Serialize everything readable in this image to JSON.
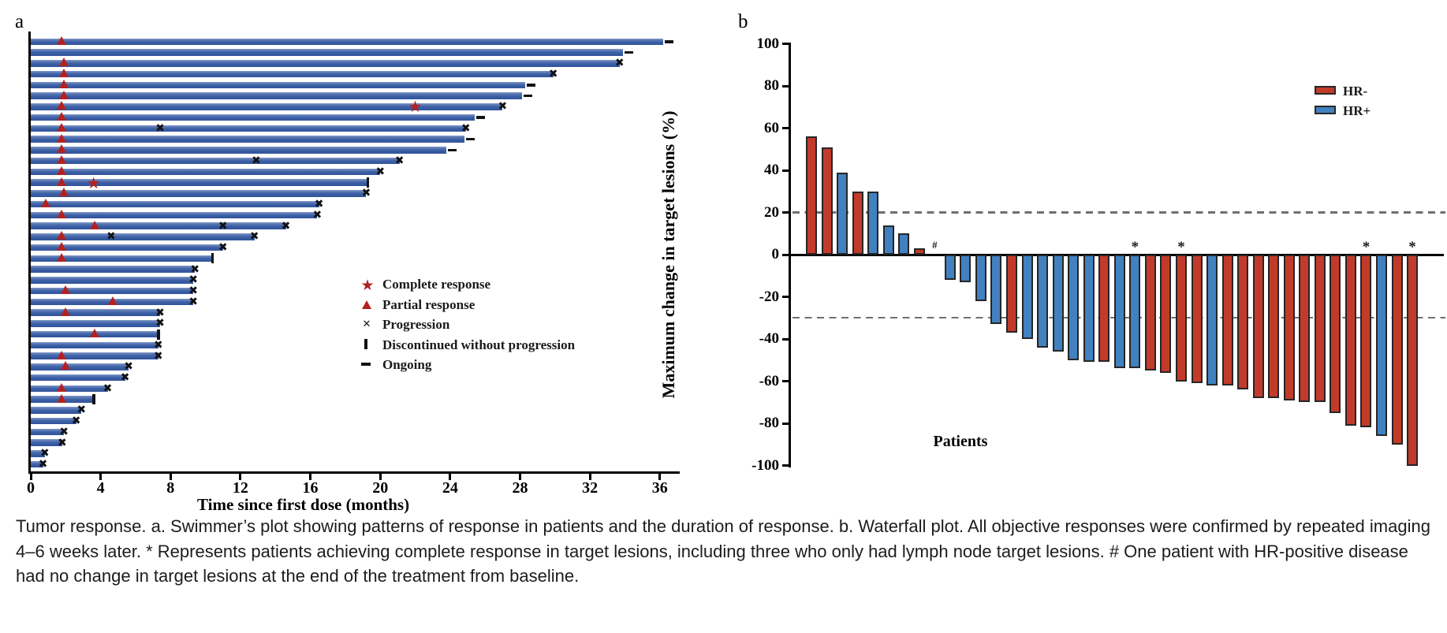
{
  "figure": {
    "panel_a_label": "a",
    "panel_b_label": "b"
  },
  "chart_data": [
    {
      "type": "swimmer",
      "xlabel": "Time since first dose (months)",
      "x_ticks": [
        0,
        4,
        8,
        12,
        16,
        20,
        24,
        28,
        32,
        36
      ],
      "xlim": [
        0,
        37
      ],
      "bar_color": "#3a5fa5",
      "marker_red": "#b42121",
      "marker_black": "#121212",
      "legend": [
        {
          "symbol": "star",
          "label": "Complete response"
        },
        {
          "symbol": "triangle",
          "label": "Partial response"
        },
        {
          "symbol": "x",
          "label": "Progression"
        },
        {
          "symbol": "bar",
          "label": "Discontinued without progression"
        },
        {
          "symbol": "dash",
          "label": "Ongoing"
        }
      ],
      "patients": [
        {
          "duration": 36.2,
          "end": "ongoing",
          "events": [
            [
              "pr",
              1.8
            ]
          ]
        },
        {
          "duration": 33.9,
          "end": "ongoing",
          "events": []
        },
        {
          "duration": 33.7,
          "end": "progression",
          "events": [
            [
              "pr",
              1.9
            ]
          ]
        },
        {
          "duration": 29.9,
          "end": "progression",
          "events": [
            [
              "pr",
              1.9
            ]
          ]
        },
        {
          "duration": 28.3,
          "end": "ongoing",
          "events": [
            [
              "pr",
              1.9
            ]
          ]
        },
        {
          "duration": 28.1,
          "end": "ongoing",
          "events": [
            [
              "pr",
              1.9
            ]
          ]
        },
        {
          "duration": 27.0,
          "end": "progression",
          "events": [
            [
              "pr",
              1.8
            ],
            [
              "cr",
              22.0
            ]
          ]
        },
        {
          "duration": 25.4,
          "end": "ongoing",
          "events": [
            [
              "pr",
              1.8
            ]
          ]
        },
        {
          "duration": 24.9,
          "end": "progression",
          "events": [
            [
              "pr",
              1.8
            ],
            [
              "x",
              7.4
            ]
          ]
        },
        {
          "duration": 24.8,
          "end": "ongoing",
          "events": [
            [
              "pr",
              1.8
            ]
          ]
        },
        {
          "duration": 23.8,
          "end": "ongoing",
          "events": [
            [
              "pr",
              1.8
            ]
          ]
        },
        {
          "duration": 21.1,
          "end": "progression",
          "events": [
            [
              "pr",
              1.8
            ],
            [
              "x",
              12.9
            ]
          ]
        },
        {
          "duration": 20.0,
          "end": "progression",
          "events": [
            [
              "pr",
              1.8
            ]
          ]
        },
        {
          "duration": 19.3,
          "end": "discontinued",
          "events": [
            [
              "pr",
              1.8
            ],
            [
              "cr",
              3.6
            ]
          ]
        },
        {
          "duration": 19.2,
          "end": "progression",
          "events": [
            [
              "pr",
              1.9
            ]
          ]
        },
        {
          "duration": 16.5,
          "end": "progression",
          "events": [
            [
              "pr",
              0.9
            ]
          ]
        },
        {
          "duration": 16.4,
          "end": "progression",
          "events": [
            [
              "pr",
              1.8
            ]
          ]
        },
        {
          "duration": 14.6,
          "end": "progression",
          "events": [
            [
              "pr",
              3.7
            ],
            [
              "x",
              11.0
            ]
          ]
        },
        {
          "duration": 12.8,
          "end": "progression",
          "events": [
            [
              "pr",
              1.8
            ],
            [
              "x",
              4.6
            ]
          ]
        },
        {
          "duration": 11.0,
          "end": "progression",
          "events": [
            [
              "pr",
              1.8
            ]
          ]
        },
        {
          "duration": 10.4,
          "end": "discontinued",
          "events": [
            [
              "pr",
              1.8
            ]
          ]
        },
        {
          "duration": 9.4,
          "end": "progression",
          "events": []
        },
        {
          "duration": 9.3,
          "end": "progression",
          "events": []
        },
        {
          "duration": 9.3,
          "end": "progression",
          "events": [
            [
              "pr",
              2.0
            ]
          ]
        },
        {
          "duration": 9.3,
          "end": "progression",
          "events": [
            [
              "pr",
              4.7
            ]
          ]
        },
        {
          "duration": 7.4,
          "end": "progression",
          "events": [
            [
              "pr",
              2.0
            ]
          ]
        },
        {
          "duration": 7.4,
          "end": "progression",
          "events": []
        },
        {
          "duration": 7.3,
          "end": "discontinued",
          "events": [
            [
              "pr",
              3.7
            ]
          ]
        },
        {
          "duration": 7.3,
          "end": "progression",
          "events": []
        },
        {
          "duration": 7.3,
          "end": "progression",
          "events": [
            [
              "pr",
              1.8
            ]
          ]
        },
        {
          "duration": 5.6,
          "end": "progression",
          "events": [
            [
              "pr",
              2.0
            ]
          ]
        },
        {
          "duration": 5.4,
          "end": "progression",
          "events": []
        },
        {
          "duration": 4.4,
          "end": "progression",
          "events": [
            [
              "pr",
              1.8
            ]
          ]
        },
        {
          "duration": 3.6,
          "end": "discontinued",
          "events": [
            [
              "pr",
              1.8
            ]
          ]
        },
        {
          "duration": 2.9,
          "end": "progression",
          "events": []
        },
        {
          "duration": 2.6,
          "end": "progression",
          "events": []
        },
        {
          "duration": 1.9,
          "end": "progression",
          "events": []
        },
        {
          "duration": 1.8,
          "end": "progression",
          "events": []
        },
        {
          "duration": 0.8,
          "end": "progression",
          "events": []
        },
        {
          "duration": 0.7,
          "end": "progression",
          "events": []
        }
      ]
    },
    {
      "type": "bar",
      "ylabel": "Maximum change in target lesions (%)",
      "xlabel": "Patients",
      "ylim": [
        -100,
        100
      ],
      "y_ticks": [
        100,
        80,
        60,
        40,
        20,
        0,
        -20,
        -40,
        -60,
        -80,
        -100
      ],
      "reference_lines": [
        20,
        -30
      ],
      "legend": [
        {
          "label": "HR-",
          "color": "#c23b2a"
        },
        {
          "label": "HR+",
          "color": "#4181bf"
        }
      ],
      "colors": {
        "HR-": "#c23b2a",
        "HR+": "#4181bf"
      },
      "values": [
        {
          "v": 56,
          "group": "HR-"
        },
        {
          "v": 51,
          "group": "HR-"
        },
        {
          "v": 39,
          "group": "HR+"
        },
        {
          "v": 30,
          "group": "HR-"
        },
        {
          "v": 30,
          "group": "HR+"
        },
        {
          "v": 14,
          "group": "HR+"
        },
        {
          "v": 10,
          "group": "HR+"
        },
        {
          "v": 3,
          "group": "HR-"
        },
        {
          "v": 0,
          "group": "HR+",
          "mark": "#"
        },
        {
          "v": -12,
          "group": "HR+"
        },
        {
          "v": -13,
          "group": "HR+"
        },
        {
          "v": -22,
          "group": "HR+"
        },
        {
          "v": -33,
          "group": "HR+"
        },
        {
          "v": -37,
          "group": "HR-"
        },
        {
          "v": -40,
          "group": "HR+"
        },
        {
          "v": -44,
          "group": "HR+"
        },
        {
          "v": -46,
          "group": "HR+"
        },
        {
          "v": -50,
          "group": "HR+"
        },
        {
          "v": -51,
          "group": "HR+"
        },
        {
          "v": -51,
          "group": "HR-"
        },
        {
          "v": -54,
          "group": "HR+"
        },
        {
          "v": -54,
          "group": "HR+",
          "mark": "*"
        },
        {
          "v": -55,
          "group": "HR-"
        },
        {
          "v": -56,
          "group": "HR-"
        },
        {
          "v": -60,
          "group": "HR-",
          "mark": "*"
        },
        {
          "v": -61,
          "group": "HR-"
        },
        {
          "v": -62,
          "group": "HR+"
        },
        {
          "v": -62,
          "group": "HR-"
        },
        {
          "v": -64,
          "group": "HR-"
        },
        {
          "v": -68,
          "group": "HR-"
        },
        {
          "v": -68,
          "group": "HR-"
        },
        {
          "v": -69,
          "group": "HR-"
        },
        {
          "v": -70,
          "group": "HR-"
        },
        {
          "v": -70,
          "group": "HR-"
        },
        {
          "v": -75,
          "group": "HR-"
        },
        {
          "v": -81,
          "group": "HR-"
        },
        {
          "v": -82,
          "group": "HR-",
          "mark": "*"
        },
        {
          "v": -86,
          "group": "HR+"
        },
        {
          "v": -90,
          "group": "HR-"
        },
        {
          "v": -100,
          "group": "HR-",
          "mark": "*"
        }
      ]
    }
  ],
  "caption": {
    "text": "Tumor response. a. Swimmer’s plot showing patterns of response in patients and the duration of response. b. Waterfall plot. All objective responses were confirmed by repeated imaging 4–6 weeks later. * Represents patients achieving complete response in target lesions, including three who only had lymph node target lesions. # One patient with HR-positive disease had no change in target lesions at the end of the treatment from baseline."
  }
}
